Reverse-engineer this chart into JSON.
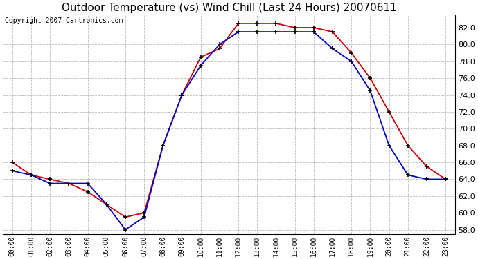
{
  "title": "Outdoor Temperature (vs) Wind Chill (Last 24 Hours) 20070611",
  "copyright": "Copyright 2007 Cartronics.com",
  "hours": [
    "00:00",
    "01:00",
    "02:00",
    "03:00",
    "04:00",
    "05:00",
    "06:00",
    "07:00",
    "08:00",
    "09:00",
    "10:00",
    "11:00",
    "12:00",
    "13:00",
    "14:00",
    "15:00",
    "16:00",
    "17:00",
    "18:00",
    "19:00",
    "20:00",
    "21:00",
    "22:00",
    "23:00"
  ],
  "outdoor_temp": [
    66.0,
    64.5,
    64.0,
    63.5,
    62.5,
    61.0,
    59.5,
    60.0,
    68.0,
    74.0,
    78.5,
    79.5,
    82.5,
    82.5,
    82.5,
    82.0,
    82.0,
    81.5,
    79.0,
    76.0,
    72.0,
    68.0,
    65.5,
    64.0
  ],
  "wind_chill": [
    65.0,
    64.5,
    63.5,
    63.5,
    63.5,
    61.0,
    58.0,
    59.5,
    68.0,
    74.0,
    77.5,
    80.0,
    81.5,
    81.5,
    81.5,
    81.5,
    81.5,
    79.5,
    78.0,
    74.5,
    68.0,
    64.5,
    64.0,
    64.0
  ],
  "temp_color": "#cc0000",
  "wind_chill_color": "#0000cc",
  "bg_color": "#ffffff",
  "grid_color": "#bbbbbb",
  "ylim": [
    57.5,
    83.5
  ],
  "ytick_min": 58.0,
  "ytick_max": 82.0,
  "ytick_step": 2.0,
  "title_fontsize": 11,
  "copyright_fontsize": 7,
  "marker": "+",
  "marker_size": 5,
  "marker_color": "#000000",
  "line_width": 1.3
}
